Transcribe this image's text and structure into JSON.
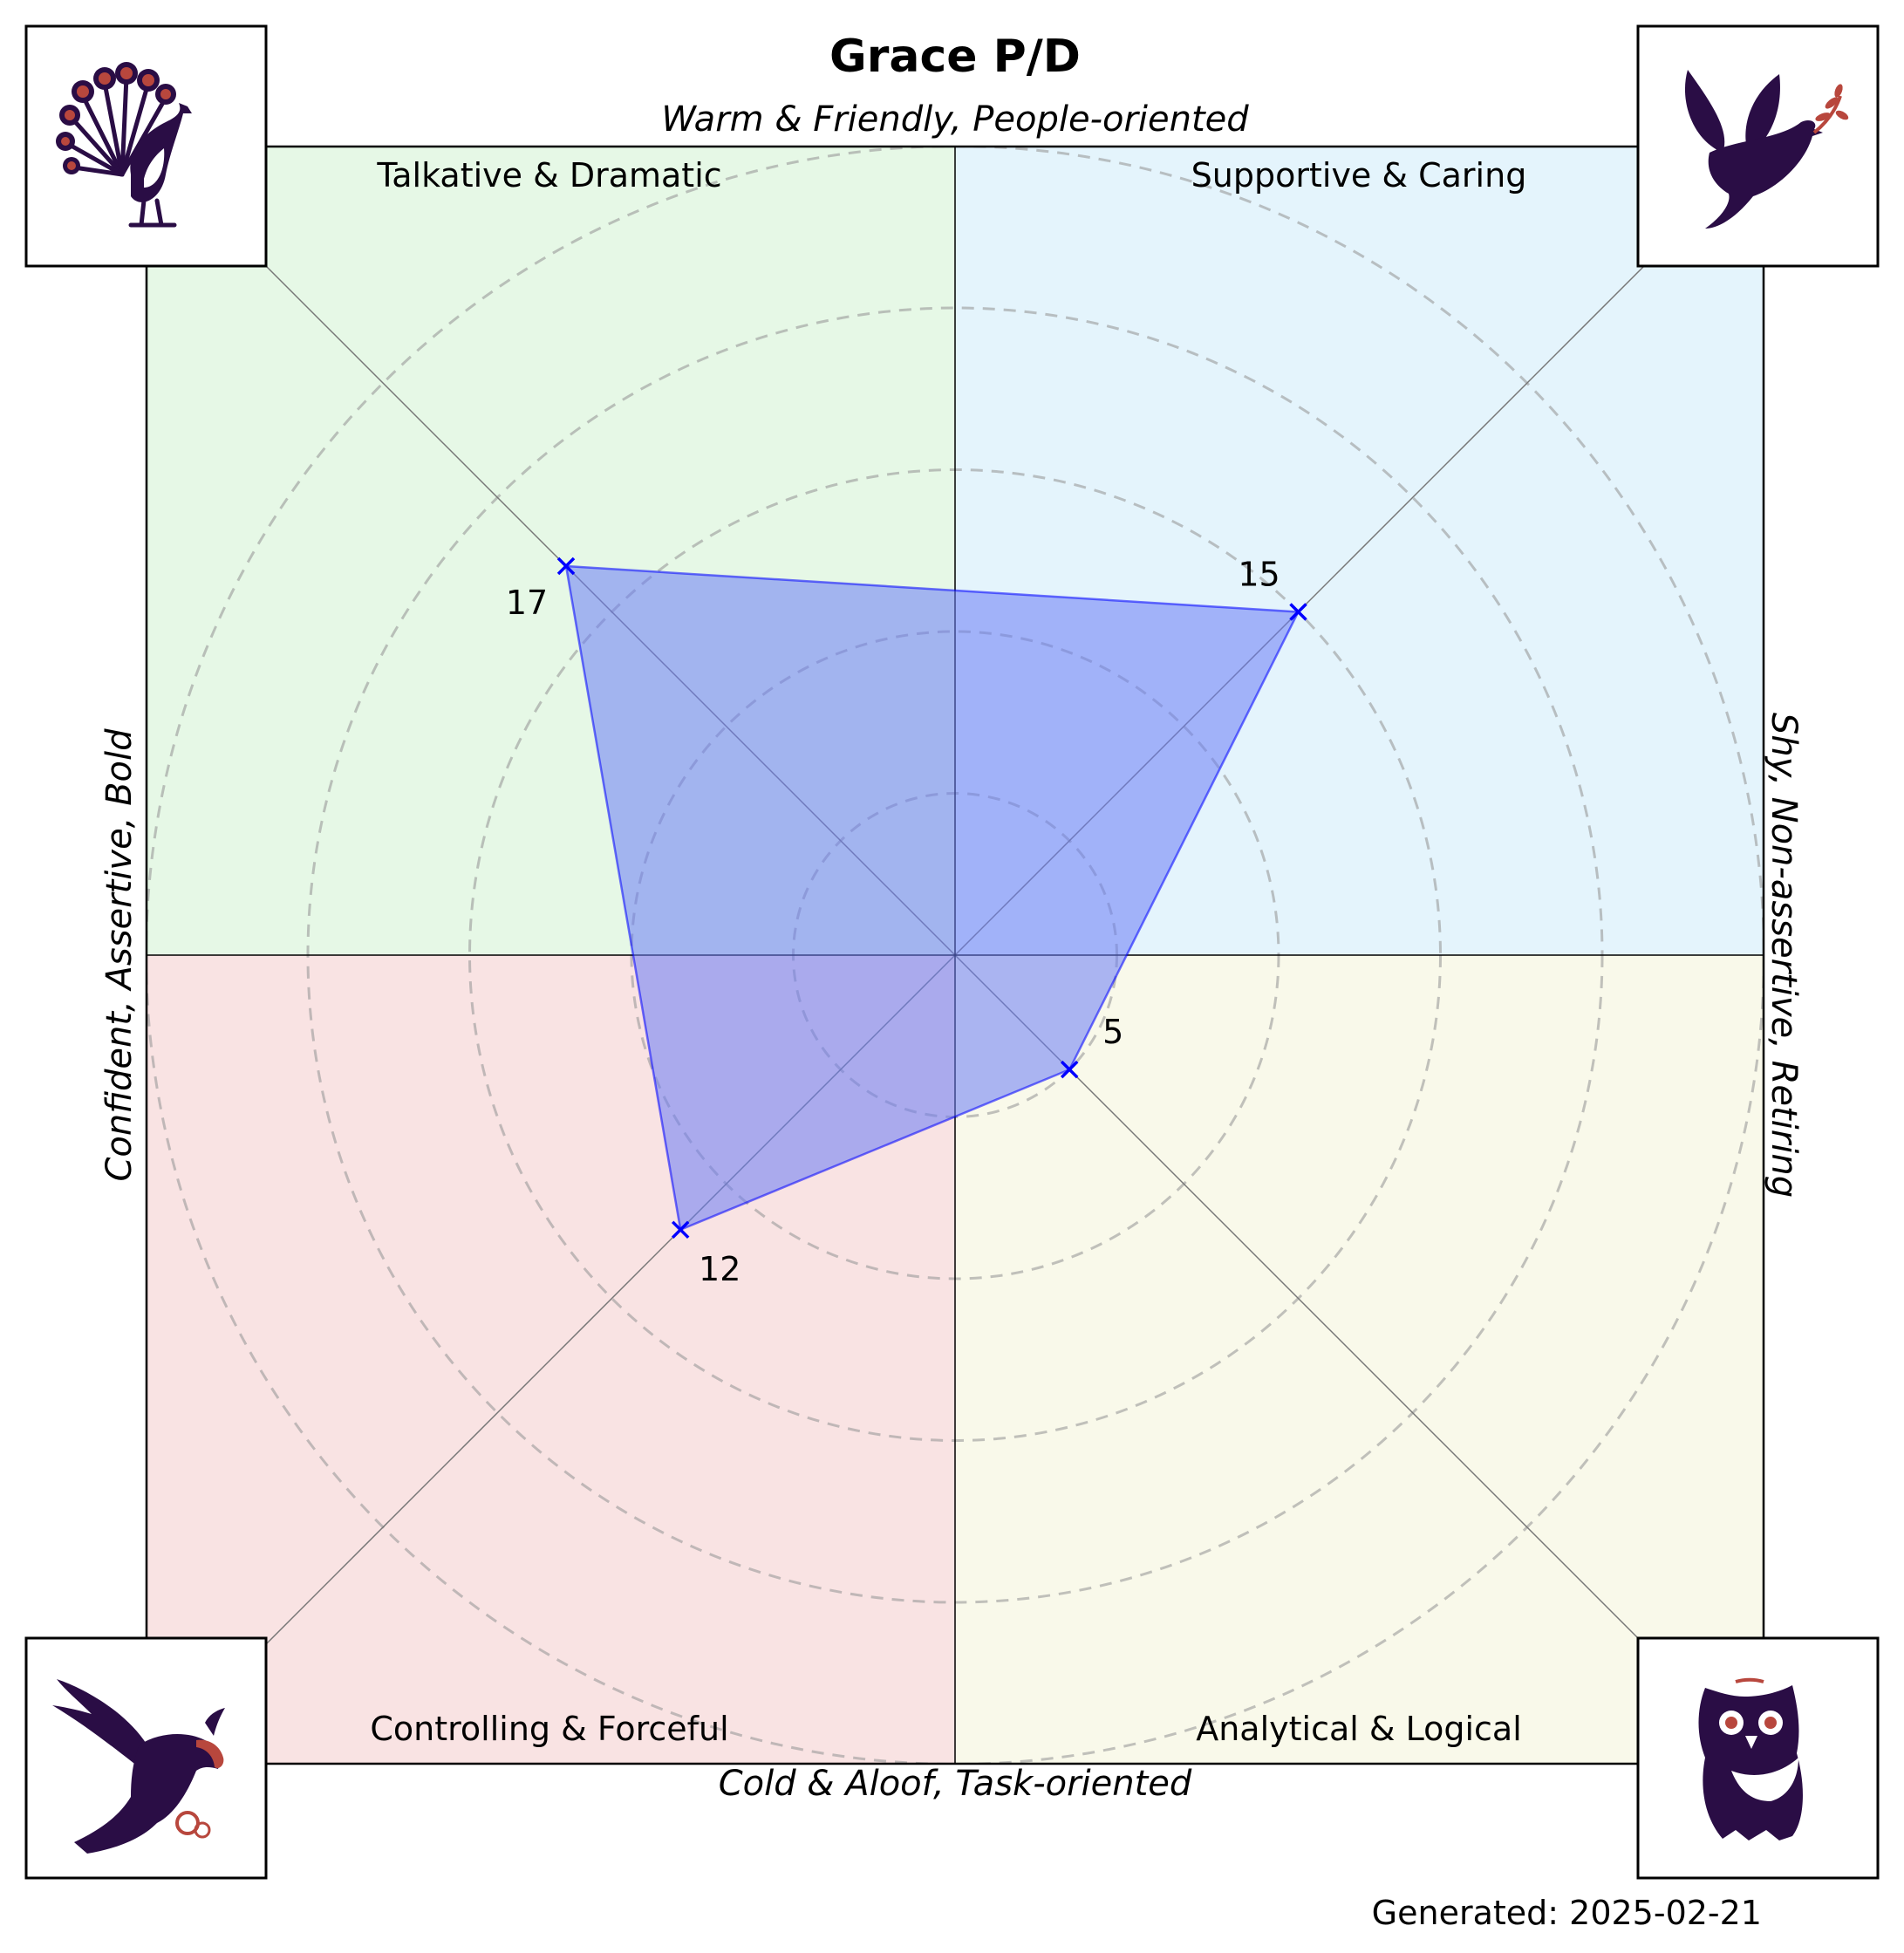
{
  "header": {
    "title": "Grace P/D"
  },
  "footer": {
    "generated": "Generated: 2025-02-21"
  },
  "colors": {
    "quadrant_top_left": "#e6f8e6",
    "quadrant_top_right": "#e4f4fc",
    "quadrant_bottom_left": "#f9e3e3",
    "quadrant_bottom_right": "#f9f9ea",
    "polygon_fill": "#6a7cf5",
    "marker": "#0000ff",
    "icon_dark": "#2a0d45",
    "icon_accent": "#b8473d"
  },
  "icons": {
    "top_left": "peacock-icon",
    "top_right": "dove-icon",
    "bottom_left": "eagle-icon",
    "bottom_right": "owl-icon"
  },
  "chart_data": {
    "type": "radar",
    "title": "Grace P/D",
    "axis_labels": {
      "top": "Warm & Friendly, People-oriented",
      "bottom": "Cold & Aloof, Task-oriented",
      "left": "Confident, Assertive, Bold",
      "right": "Shy, Non-assertive, Retiring"
    },
    "quadrants": [
      {
        "name": "Talkative & Dramatic",
        "position": "top-left"
      },
      {
        "name": "Supportive & Caring",
        "position": "top-right"
      },
      {
        "name": "Controlling & Forceful",
        "position": "bottom-left"
      },
      {
        "name": "Analytical & Logical",
        "position": "bottom-right"
      }
    ],
    "series": [
      {
        "points": [
          {
            "axis": "Talkative & Dramatic",
            "value": 17
          },
          {
            "axis": "Supportive & Caring",
            "value": 15
          },
          {
            "axis": "Analytical & Logical",
            "value": 5
          },
          {
            "axis": "Controlling & Forceful",
            "value": 12
          }
        ]
      }
    ],
    "rings": [
      5,
      10,
      15,
      20,
      25
    ],
    "rlim": [
      0,
      25
    ],
    "grid": true
  }
}
